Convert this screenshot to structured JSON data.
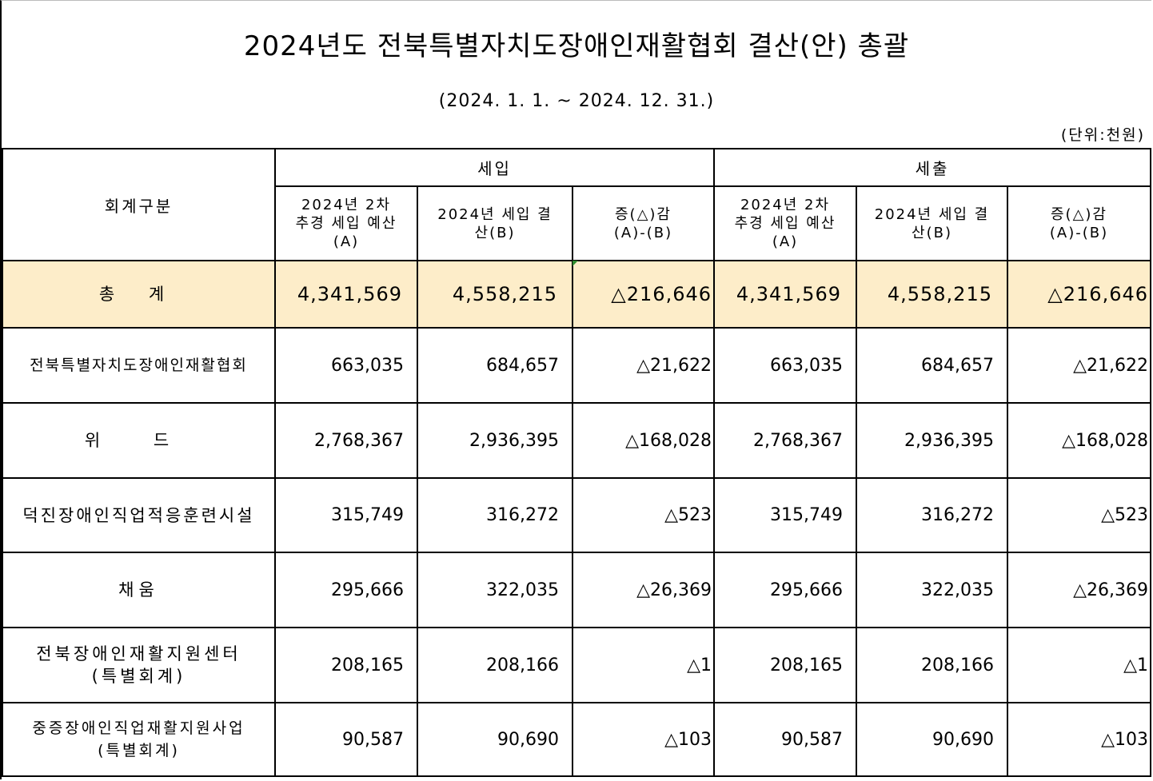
{
  "title": "2024년도 전북특별자치도장애인재활협회 결산(안) 총괄",
  "period": "(2024. 1. 1. ~ 2024. 12. 31.)",
  "unit": "(단위:천원)",
  "header": {
    "category": "회계구분",
    "income": "세입",
    "expense": "세출",
    "col_budget_line1": "2024년 2차",
    "col_budget_line2": "추경 세입 예산",
    "col_budget_line3": "(A)",
    "col_settle_line1": "2024년 세입 결",
    "col_settle_line2": "산(B)",
    "col_diff_line1": "증(△)감",
    "col_diff_line2": "(A)-(B)"
  },
  "rows": [
    {
      "name1": "총 계",
      "name2": "",
      "in_a": "4,341,569",
      "in_b": "4,558,215",
      "in_d": "△216,646",
      "out_a": "4,341,569",
      "out_b": "4,558,215",
      "out_d": "△216,646"
    },
    {
      "name1": "전북특별자치도장애인재활협회",
      "name2": "",
      "in_a": "663,035",
      "in_b": "684,657",
      "in_d": "△21,622",
      "out_a": "663,035",
      "out_b": "684,657",
      "out_d": "△21,622"
    },
    {
      "name1": "위 드",
      "name2": "",
      "in_a": "2,768,367",
      "in_b": "2,936,395",
      "in_d": "△168,028",
      "out_a": "2,768,367",
      "out_b": "2,936,395",
      "out_d": "△168,028"
    },
    {
      "name1": "덕진장애인직업적응훈련시설",
      "name2": "",
      "in_a": "315,749",
      "in_b": "316,272",
      "in_d": "△523",
      "out_a": "315,749",
      "out_b": "316,272",
      "out_d": "△523"
    },
    {
      "name1": "채움",
      "name2": "",
      "in_a": "295,666",
      "in_b": "322,035",
      "in_d": "△26,369",
      "out_a": "295,666",
      "out_b": "322,035",
      "out_d": "△26,369"
    },
    {
      "name1": "전북장애인재활지원센터",
      "name2": "(특별회계)",
      "in_a": "208,165",
      "in_b": "208,166",
      "in_d": "△1",
      "out_a": "208,165",
      "out_b": "208,166",
      "out_d": "△1"
    },
    {
      "name1": "중증장애인직업재활지원사업",
      "name2": "(특별회계)",
      "in_a": "90,587",
      "in_b": "90,690",
      "in_d": "△103",
      "out_a": "90,587",
      "out_b": "90,690",
      "out_d": "△103"
    }
  ]
}
